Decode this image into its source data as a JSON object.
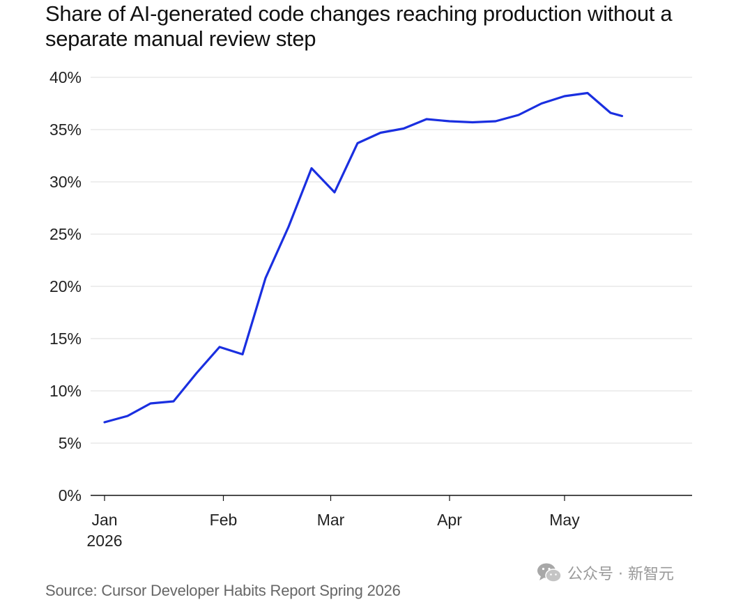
{
  "title": "Share of AI-generated code changes reaching production without a separate manual review step",
  "source": "Source: Cursor Developer Habits Report Spring 2026",
  "watermark": {
    "text": "公众号 · 新智元",
    "icon": "wechat-icon"
  },
  "colors": {
    "line": "#1a2fe0",
    "grid": "#dcdcdc",
    "axis": "#111111",
    "text": "#222222",
    "source": "#666666"
  },
  "chart_data": {
    "type": "line",
    "title": "Share of AI-generated code changes reaching production without a separate manual review step",
    "xlabel": "",
    "ylabel": "",
    "ylim": [
      0,
      40
    ],
    "y_ticks": [
      "0%",
      "5%",
      "10%",
      "15%",
      "20%",
      "25%",
      "30%",
      "35%",
      "40%"
    ],
    "y_tick_values": [
      0,
      5,
      10,
      15,
      20,
      25,
      30,
      35,
      40
    ],
    "x_ticks": [
      {
        "date": "2026-01-01",
        "label": "Jan",
        "sublabel": "2026"
      },
      {
        "date": "2026-02-01",
        "label": "Feb",
        "sublabel": ""
      },
      {
        "date": "2026-03-01",
        "label": "Mar",
        "sublabel": ""
      },
      {
        "date": "2026-04-01",
        "label": "Apr",
        "sublabel": ""
      },
      {
        "date": "2026-05-01",
        "label": "May",
        "sublabel": ""
      }
    ],
    "xlim": [
      "2026-01-01",
      "2026-05-31"
    ],
    "grid": true,
    "series": [
      {
        "points": [
          {
            "x": "2026-01-01",
            "y": 7.0
          },
          {
            "x": "2026-01-07",
            "y": 7.6
          },
          {
            "x": "2026-01-13",
            "y": 8.8
          },
          {
            "x": "2026-01-19",
            "y": 9.0
          },
          {
            "x": "2026-01-25",
            "y": 11.7
          },
          {
            "x": "2026-01-31",
            "y": 14.2
          },
          {
            "x": "2026-02-06",
            "y": 13.5
          },
          {
            "x": "2026-02-12",
            "y": 20.8
          },
          {
            "x": "2026-02-18",
            "y": 25.7
          },
          {
            "x": "2026-02-24",
            "y": 31.3
          },
          {
            "x": "2026-03-02",
            "y": 29.0
          },
          {
            "x": "2026-03-08",
            "y": 33.7
          },
          {
            "x": "2026-03-14",
            "y": 34.7
          },
          {
            "x": "2026-03-20",
            "y": 35.1
          },
          {
            "x": "2026-03-26",
            "y": 36.0
          },
          {
            "x": "2026-04-01",
            "y": 35.8
          },
          {
            "x": "2026-04-07",
            "y": 35.7
          },
          {
            "x": "2026-04-13",
            "y": 35.8
          },
          {
            "x": "2026-04-19",
            "y": 36.4
          },
          {
            "x": "2026-04-25",
            "y": 37.5
          },
          {
            "x": "2026-05-01",
            "y": 38.2
          },
          {
            "x": "2026-05-07",
            "y": 38.5
          },
          {
            "x": "2026-05-13",
            "y": 36.6
          },
          {
            "x": "2026-05-16",
            "y": 36.3
          }
        ]
      }
    ]
  }
}
